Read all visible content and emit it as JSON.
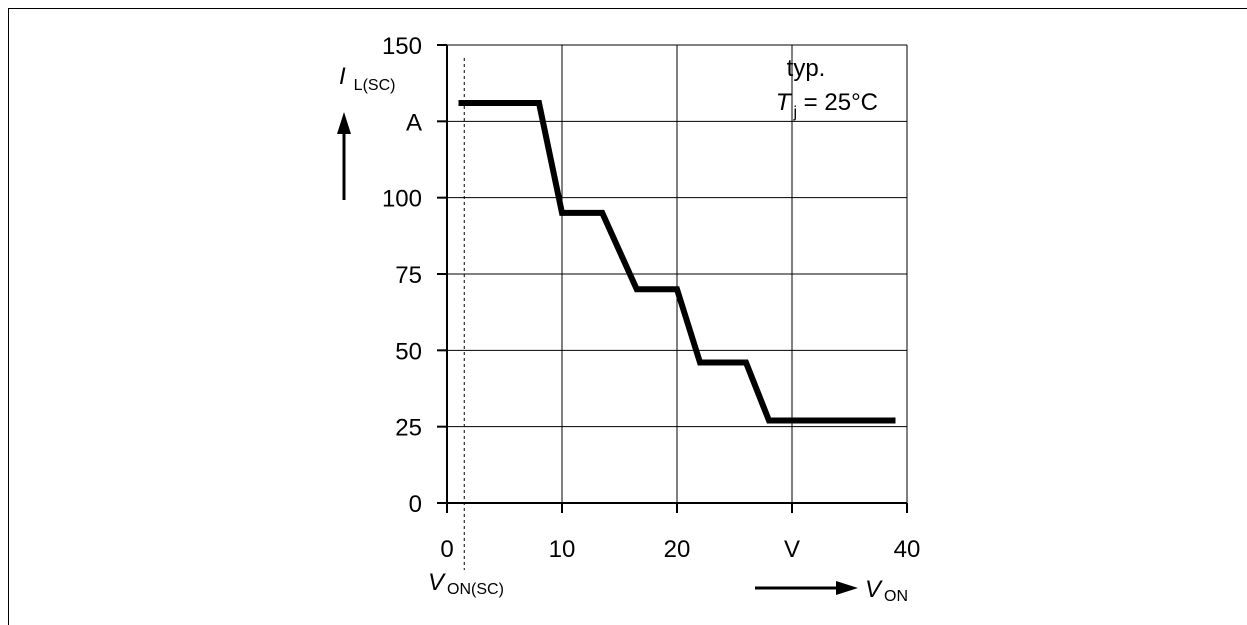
{
  "chart_data": {
    "type": "line",
    "annotation": {
      "line1": "typ.",
      "line2_symbol": "T",
      "line2_sub": "j",
      "line2_rest": " = 25°C"
    },
    "ylabel": {
      "symbol": "I",
      "sub": "L(SC)",
      "unit": "A"
    },
    "xlabel": {
      "symbol": "V",
      "sub": "ON",
      "unit": "V"
    },
    "marker_label": {
      "symbol": "V",
      "sub": "ON(SC)"
    },
    "marker_x": 1.5,
    "xlim": [
      0,
      40
    ],
    "ylim": [
      0,
      150
    ],
    "x_ticks": [
      {
        "value": 0,
        "label": "0"
      },
      {
        "value": 10,
        "label": "10"
      },
      {
        "value": 20,
        "label": "20"
      },
      {
        "value": 30,
        "label": "V"
      },
      {
        "value": 40,
        "label": "40"
      }
    ],
    "y_ticks": [
      {
        "value": 0,
        "label": "0"
      },
      {
        "value": 25,
        "label": "25"
      },
      {
        "value": 50,
        "label": "50"
      },
      {
        "value": 75,
        "label": "75"
      },
      {
        "value": 100,
        "label": "100"
      },
      {
        "value": 125,
        "label": "A"
      },
      {
        "value": 150,
        "label": "150"
      }
    ],
    "grid": true,
    "series": [
      {
        "x": [
          1,
          8,
          10,
          13.5,
          16.5,
          20,
          22,
          26,
          28,
          39
        ],
        "y": [
          131,
          131,
          95,
          95,
          70,
          70,
          46,
          46,
          27,
          27
        ]
      }
    ],
    "color": "#000000"
  }
}
